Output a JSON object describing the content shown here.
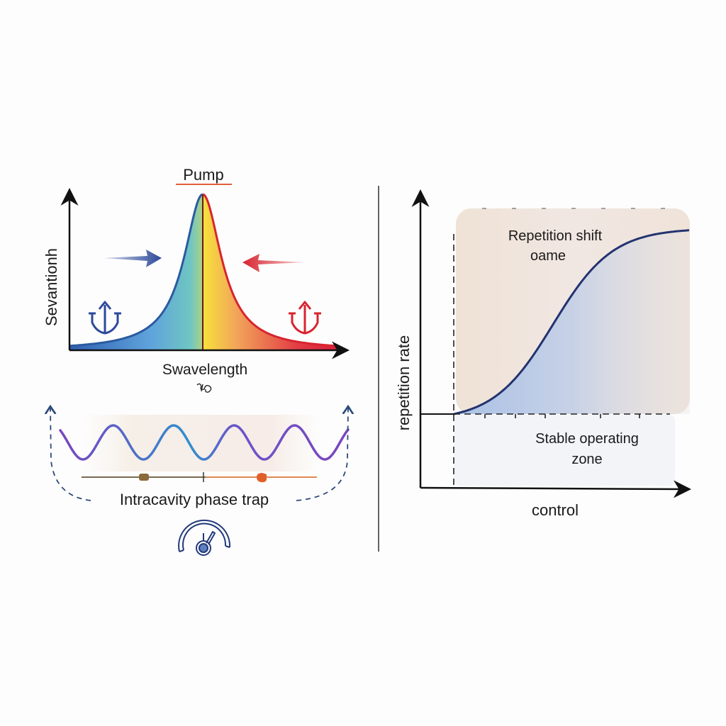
{
  "left_panel": {
    "pump_label": "Pump",
    "y_axis_label": "Sevantionh",
    "x_axis_label": "Swavelength",
    "trap_label": "Intracavity phase trap",
    "colors": {
      "blue": "#2d4a9a",
      "red": "#d8242f",
      "wave": "#7a4fc0"
    }
  },
  "right_panel": {
    "y_axis_label": "repetition rate",
    "x_axis_label": "control",
    "upper_region_label_line1": "Repetition shift",
    "upper_region_label_line2": "oame",
    "lower_region_label_line1": "Stable operating",
    "lower_region_label_line2": "zone",
    "colors": {
      "curve": "#23336f",
      "upper_region": "#eee2d8",
      "fill": "#aec4e4"
    }
  }
}
